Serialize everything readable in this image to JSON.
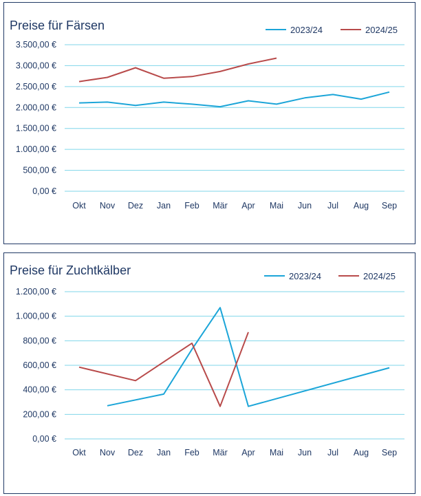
{
  "chart_data": [
    {
      "type": "line",
      "title": "Preise für Färsen",
      "categories": [
        "Okt",
        "Nov",
        "Dez",
        "Jan",
        "Feb",
        "Mär",
        "Apr",
        "Mai",
        "Jun",
        "Jul",
        "Aug",
        "Sep"
      ],
      "y_ticks": [
        "0,00 €",
        "500,00 €",
        "1.000,00 €",
        "1.500,00 €",
        "2.000,00 €",
        "2.500,00 €",
        "3.000,00 €",
        "3.500,00 €"
      ],
      "ylim": [
        0,
        3500
      ],
      "grid": true,
      "legend_position": "top-right",
      "series": [
        {
          "name": "2023/24",
          "color": "#1ba5d8",
          "values": [
            2110,
            2130,
            2050,
            2130,
            2080,
            2020,
            2160,
            2080,
            2230,
            2310,
            2200,
            2370
          ]
        },
        {
          "name": "2024/25",
          "color": "#b84a4a",
          "values": [
            2620,
            2720,
            2950,
            2700,
            2740,
            2860,
            3040,
            3180,
            null,
            null,
            null,
            null
          ]
        }
      ]
    },
    {
      "type": "line",
      "title": "Preise für Zuchtkälber",
      "categories": [
        "Okt",
        "Nov",
        "Dez",
        "Jan",
        "Feb",
        "Mär",
        "Apr",
        "Mai",
        "Jun",
        "Jul",
        "Aug",
        "Sep"
      ],
      "y_ticks": [
        "0,00 €",
        "200,00 €",
        "400,00 €",
        "600,00 €",
        "800,00 €",
        "1.000,00 €",
        "1.200,00 €"
      ],
      "ylim": [
        0,
        1200
      ],
      "grid": true,
      "legend_position": "top-right",
      "series": [
        {
          "name": "2023/24",
          "color": "#1ba5d8",
          "values": [
            null,
            270,
            null,
            365,
            730,
            1070,
            265,
            null,
            null,
            null,
            null,
            580
          ]
        },
        {
          "name": "2024/25",
          "color": "#b84a4a",
          "values": [
            585,
            null,
            475,
            null,
            780,
            265,
            870,
            null,
            null,
            null,
            null,
            null
          ]
        }
      ]
    }
  ]
}
